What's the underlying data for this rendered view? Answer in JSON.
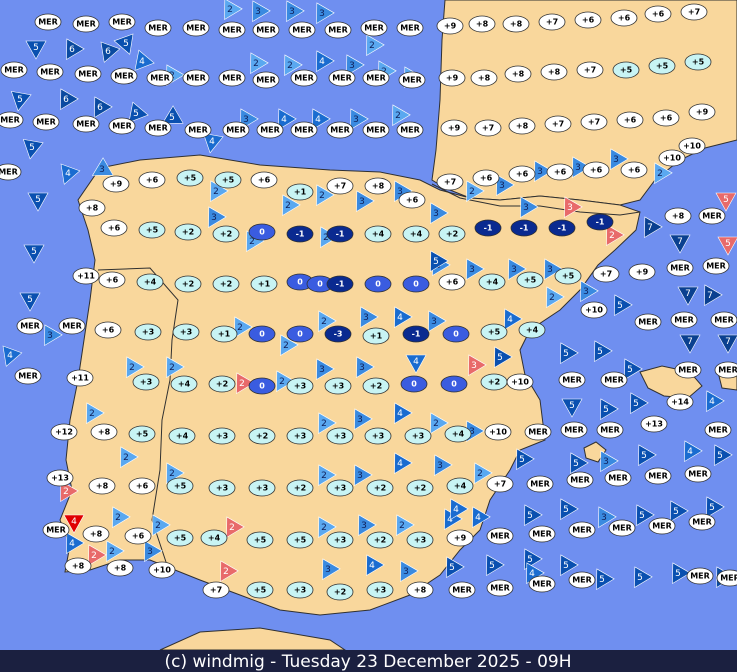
{
  "footer": "(c) windmig - Tuesday 23 December 2025 - 09H",
  "stations": [
    "MER",
    "MER",
    "MER",
    "MER",
    "MER",
    "MER",
    "MER",
    "MER",
    "MER",
    "MER",
    "MER",
    "+9",
    "+8",
    "+8",
    "+7",
    "+6",
    "+6",
    "+6",
    "+7",
    "MER",
    "MER",
    "MER",
    "MER",
    "MER",
    "MER",
    "MER",
    "MER",
    "MER",
    "MER",
    "MER",
    "MER",
    "+9",
    "+8",
    "+8",
    "+8",
    "+7",
    "+5",
    "+5",
    "+5",
    "MER",
    "MER",
    "MER",
    "MER",
    "MER",
    "MER",
    "MER",
    "MER",
    "MER",
    "MER",
    "MER",
    "MER",
    "+9",
    "+7",
    "+8",
    "+7",
    "+7",
    "+6",
    "+6",
    "+9",
    "+10",
    "+10",
    "MER",
    "+9",
    "+6",
    "+5",
    "+5",
    "+6",
    "+1",
    "+7",
    "+8",
    "+6",
    "+7",
    "+6",
    "+6",
    "+6",
    "+6",
    "+6",
    "+8",
    "+6",
    "+5",
    "+2",
    "+2",
    "0",
    "-1",
    "-1",
    "+4",
    "+4",
    "+2",
    "-1",
    "-1",
    "-1",
    "-1",
    "+8",
    "MER",
    "+11",
    "+6",
    "+4",
    "+2",
    "+2",
    "+1",
    "0",
    "0",
    "-1",
    "0",
    "0",
    "+6",
    "+4",
    "+5",
    "+5",
    "+7",
    "+9",
    "MER",
    "MER",
    "MER",
    "MER",
    "+6",
    "+3",
    "+3",
    "+1",
    "0",
    "0",
    "-3",
    "+1",
    "-1",
    "0",
    "+5",
    "+4",
    "+10",
    "MER",
    "MER",
    "MER",
    "MER",
    "+11",
    "+3",
    "+4",
    "+2",
    "0",
    "+3",
    "+3",
    "+2",
    "0",
    "0",
    "+2",
    "+10",
    "MER",
    "MER",
    "MER",
    "MER",
    "+12",
    "+8",
    "+5",
    "+4",
    "+3",
    "+2",
    "+3",
    "+3",
    "+3",
    "+3",
    "+4",
    "+10",
    "MER",
    "MER",
    "MER",
    "+14",
    "+13",
    "MER",
    "+13",
    "+8",
    "+6",
    "+5",
    "+3",
    "+3",
    "+2",
    "+3",
    "+2",
    "+2",
    "+4",
    "+7",
    "MER",
    "MER",
    "MER",
    "MER",
    "MER",
    "MER",
    "+8",
    "+6",
    "+5",
    "+4",
    "+5",
    "+5",
    "+3",
    "+2",
    "+3",
    "+9",
    "MER",
    "MER",
    "MER",
    "MER",
    "MER",
    "MER",
    "+8",
    "+8",
    "+10",
    "+7",
    "+5",
    "+3",
    "+2",
    "+3",
    "+8",
    "MER",
    "MER",
    "MER",
    "MER",
    "MER",
    "MER"
  ],
  "winds": [
    "5",
    "6",
    "6",
    "5",
    "4",
    "5",
    "6",
    "6",
    "5",
    "5",
    "5",
    "4",
    "3",
    "5",
    "5",
    "5",
    "4",
    "3",
    "2",
    "3",
    "3",
    "3",
    "2",
    "2",
    "2",
    "4",
    "3",
    "2",
    "2",
    "4",
    "3",
    "4",
    "4",
    "3",
    "2",
    "2",
    "2",
    "3",
    "2",
    "2",
    "2",
    "2",
    "3",
    "3",
    "3",
    "2",
    "3",
    "3",
    "3",
    "3",
    "2",
    "3",
    "3",
    "2",
    "3",
    "5",
    "3",
    "3",
    "2",
    "3",
    "3",
    "2",
    "2",
    "2",
    "3",
    "4",
    "3",
    "4",
    "5",
    "4",
    "3",
    "2",
    "2",
    "2",
    "2",
    "3",
    "3",
    "4",
    "2",
    "3",
    "2",
    "3",
    "2",
    "2",
    "2",
    "2",
    "3",
    "4",
    "3",
    "2",
    "5",
    "2",
    "4",
    "2",
    "2",
    "2",
    "2",
    "3",
    "2",
    "4",
    "4",
    "4",
    "2",
    "2",
    "3",
    "2",
    "3",
    "4",
    "3",
    "5",
    "5",
    "7",
    "7",
    "5",
    "5",
    "7",
    "7",
    "5",
    "5",
    "5",
    "7",
    "7",
    "5",
    "5",
    "5",
    "5",
    "4",
    "4",
    "5",
    "5",
    "5",
    "3",
    "5",
    "5",
    "3",
    "5",
    "5",
    "5",
    "5",
    "5",
    "5",
    "5",
    "5",
    "6",
    "4",
    "4"
  ]
}
